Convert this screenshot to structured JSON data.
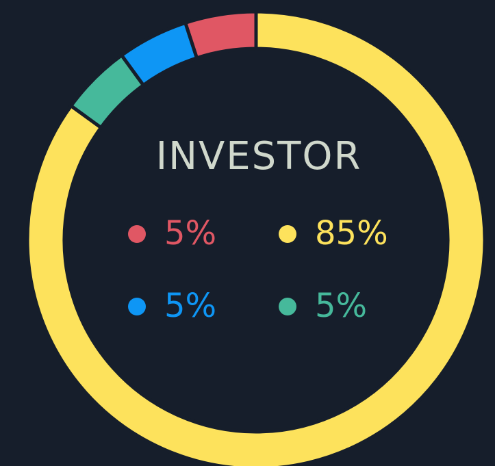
{
  "chart_data": {
    "type": "donut",
    "title": "INVESTOR",
    "values": [
      85,
      5,
      5,
      5
    ],
    "value_labels": [
      "85%",
      "5%",
      "5%",
      "5%"
    ],
    "colors": [
      "#fde25c",
      "#46b99b",
      "#0e96f5",
      "#e05764"
    ]
  }
}
